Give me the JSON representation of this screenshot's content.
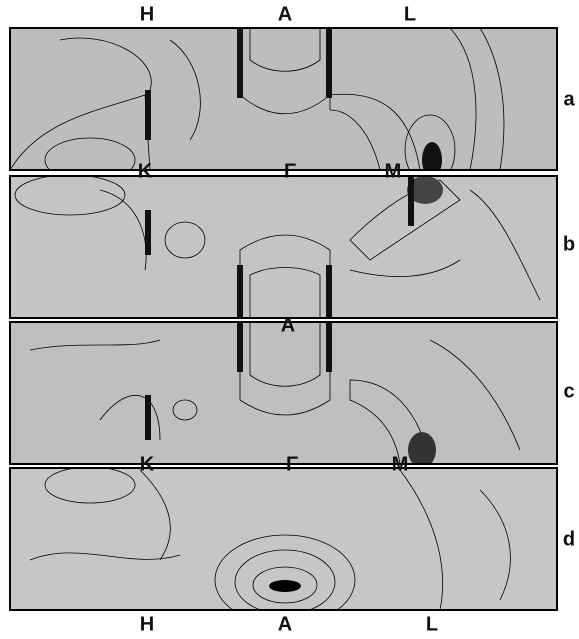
{
  "figure": {
    "top_labels": [
      "H",
      "A",
      "L"
    ],
    "panel_labels": [
      "a",
      "b",
      "c",
      "d"
    ],
    "mid_labels_ab": [
      "K",
      "Γ",
      "M"
    ],
    "mid_label_bc": "A",
    "mid_labels_cd": [
      "K",
      "Γ",
      "M"
    ],
    "bottom_labels": [
      "H",
      "A",
      "L"
    ]
  }
}
